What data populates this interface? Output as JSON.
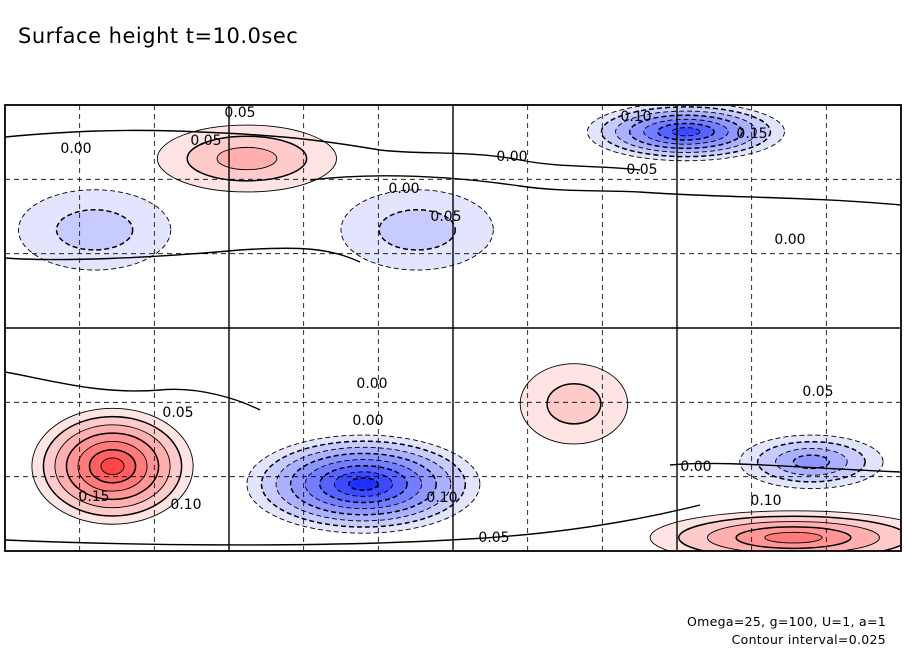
{
  "chart_data": {
    "type": "heatmap",
    "title": "Surface height t=10.0sec",
    "annotations": {
      "parameters": "Omega=25, g=100, U=1, a=1",
      "contour_interval": "Contour interval=0.025"
    },
    "contour_interval": 0.025,
    "grid": true,
    "colormap": {
      "negative": "#1f2fff",
      "zero": "#ffffff",
      "positive": "#ff2a2a"
    },
    "features": [
      {
        "sign": "positive",
        "peak": 0.075,
        "label": "0.05",
        "region": "upper-left"
      },
      {
        "sign": "negative",
        "peak": -0.175,
        "label": "0.15",
        "region": "upper-right"
      },
      {
        "sign": "negative",
        "peak": -0.06,
        "label": "0.05",
        "region": "upper-center"
      },
      {
        "sign": "negative",
        "peak": -0.04,
        "region": "upper-left-side"
      },
      {
        "sign": "positive",
        "peak": 0.175,
        "label": "0.15",
        "region": "lower-left"
      },
      {
        "sign": "negative",
        "peak": -0.2,
        "label": "0.10",
        "region": "lower-center"
      },
      {
        "sign": "positive",
        "peak": 0.06,
        "region": "center-right"
      },
      {
        "sign": "negative",
        "peak": -0.1,
        "region": "lower-right"
      },
      {
        "sign": "positive",
        "peak": 0.12,
        "label": "0.10",
        "region": "bottom-right"
      }
    ],
    "contour_labels": [
      "0.05",
      "0.05",
      "0.00",
      "0.00",
      "0.10",
      "0.15",
      "0.05",
      "0.00",
      "0.05",
      "0.00",
      "0.00",
      "0.05",
      "0.00",
      "0.10",
      "0.15",
      "0.10",
      "0.05",
      "0.00",
      "0.10",
      "0.05"
    ]
  }
}
